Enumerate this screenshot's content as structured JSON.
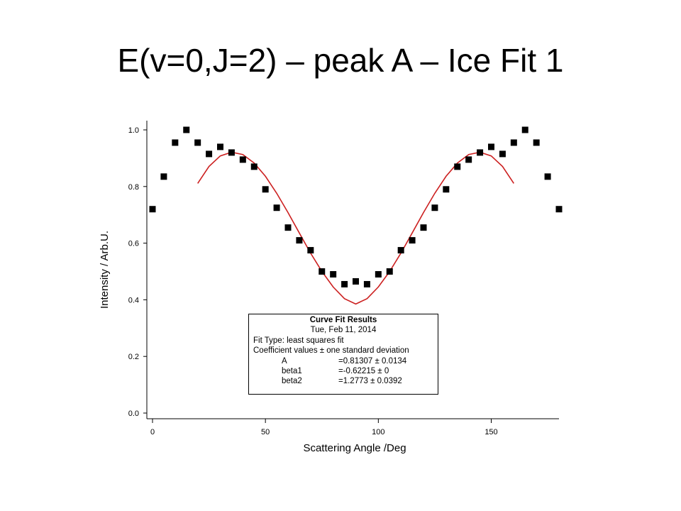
{
  "slide": {
    "title": "E(v=0,J=2) – peak A – Ice Fit 1"
  },
  "chart_data": {
    "type": "scatter",
    "xlabel": "Scattering Angle /Deg",
    "ylabel": "Intensity / Arb.U.",
    "xlim": [
      0,
      180
    ],
    "ylim": [
      0.0,
      1.0
    ],
    "x_ticks": [
      0,
      50,
      100,
      150
    ],
    "x_tick_labels": [
      "0",
      "50",
      "100",
      "150"
    ],
    "y_ticks": [
      0.0,
      0.2,
      0.4,
      0.6,
      0.8,
      1.0
    ],
    "y_tick_labels": [
      "0.0",
      "0.2",
      "0.4",
      "0.6",
      "0.8",
      "1.0"
    ],
    "grid": false,
    "series": [
      {
        "kind": "points",
        "color": "#000000",
        "marker": "square",
        "x": [
          0,
          5,
          10,
          15,
          20,
          25,
          30,
          35,
          40,
          45,
          50,
          55,
          60,
          65,
          70,
          75,
          80,
          85,
          90,
          95,
          100,
          105,
          110,
          115,
          120,
          125,
          130,
          135,
          140,
          145,
          150,
          155,
          160,
          165,
          170,
          175,
          180
        ],
        "y": [
          0.72,
          0.835,
          0.955,
          1.0,
          0.955,
          0.915,
          0.94,
          0.92,
          0.895,
          0.87,
          0.79,
          0.725,
          0.655,
          0.61,
          0.575,
          0.5,
          0.49,
          0.455,
          0.465,
          0.455,
          0.49,
          0.5,
          0.575,
          0.61,
          0.655,
          0.725,
          0.79,
          0.87,
          0.895,
          0.92,
          0.94,
          0.915,
          0.955,
          1.0,
          0.955,
          0.835,
          0.72
        ]
      },
      {
        "kind": "fit",
        "color": "#cc2020",
        "x": [
          20,
          25,
          30,
          35,
          40,
          45,
          50,
          55,
          60,
          65,
          70,
          75,
          80,
          85,
          90,
          95,
          100,
          105,
          110,
          115,
          120,
          125,
          130,
          135,
          140,
          145,
          150,
          155,
          160
        ],
        "y": [
          0.811,
          0.871,
          0.908,
          0.921,
          0.913,
          0.883,
          0.836,
          0.776,
          0.708,
          0.636,
          0.565,
          0.5,
          0.445,
          0.404,
          0.385,
          0.404,
          0.445,
          0.5,
          0.565,
          0.636,
          0.708,
          0.776,
          0.836,
          0.883,
          0.913,
          0.921,
          0.908,
          0.871,
          0.811
        ]
      }
    ],
    "annotation": {
      "heading": "Curve Fit Results",
      "date": "Tue, Feb 11, 2014",
      "fit_type": "Fit Type: least squares fit",
      "coef_note": "Coefficient values ± one standard deviation",
      "coefficients": [
        {
          "name": "A",
          "value": "=0.81307 ± 0.0134"
        },
        {
          "name": "beta1",
          "value": "=-0.62215 ± 0"
        },
        {
          "name": "beta2",
          "value": "=1.2773 ± 0.0392"
        }
      ]
    }
  }
}
